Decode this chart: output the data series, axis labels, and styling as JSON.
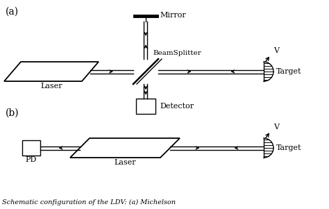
{
  "fig_width": 4.74,
  "fig_height": 3.01,
  "dpi": 100,
  "bg_color": "#ffffff",
  "line_color": "#000000",
  "label_a": "(a)",
  "label_b": "(b)",
  "panel_a": {
    "laser_label": "Laser",
    "mirror_label": "Mirror",
    "beamsplitter_label": "BeamSplitter",
    "detector_label": "Detector",
    "target_label": "Target",
    "v_label": "V"
  },
  "panel_b": {
    "pd_label": "PD",
    "laser_label": "Laser",
    "target_label": "Target",
    "v_label": "V"
  },
  "caption": "Schematic configuration of the LDV: (a) Michelson"
}
